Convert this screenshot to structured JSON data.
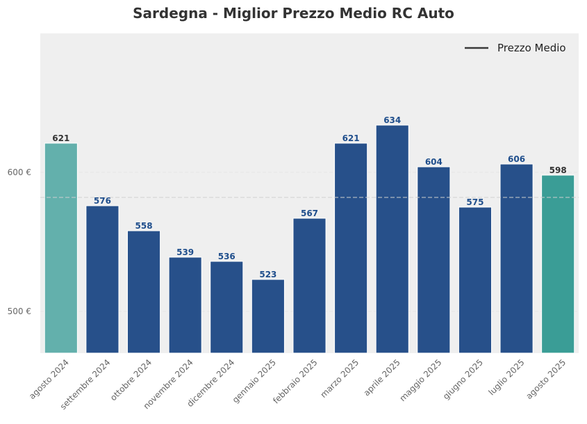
{
  "chart_data": {
    "type": "bar",
    "title": "Sardegna - Miglior Prezzo Medio RC Auto",
    "xlabel": "",
    "ylabel": "",
    "categories": [
      "agosto 2024",
      "settembre 2024",
      "ottobre 2024",
      "novembre 2024",
      "dicembre 2024",
      "gennaio 2025",
      "febbraio 2025",
      "marzo 2025",
      "aprile 2025",
      "maggio 2025",
      "giugno 2025",
      "luglio 2025",
      "agosto 2025"
    ],
    "values": [
      621,
      576,
      558,
      539,
      536,
      523,
      567,
      621,
      634,
      604,
      575,
      606,
      598
    ],
    "bar_colors": [
      "#63b0ac",
      "#27508a",
      "#27508a",
      "#27508a",
      "#27508a",
      "#27508a",
      "#27508a",
      "#27508a",
      "#27508a",
      "#27508a",
      "#27508a",
      "#27508a",
      "#3a9d96"
    ],
    "label_colors": [
      "#333333",
      "#1f4e8c",
      "#1f4e8c",
      "#1f4e8c",
      "#1f4e8c",
      "#1f4e8c",
      "#1f4e8c",
      "#1f4e8c",
      "#1f4e8c",
      "#1f4e8c",
      "#1f4e8c",
      "#1f4e8c",
      "#333333"
    ],
    "ylim": [
      470,
      700
    ],
    "yticks": [
      500,
      600
    ],
    "ytick_labels": [
      "500 €",
      "600 €"
    ],
    "average_line": 582,
    "legend": {
      "label": "Prezzo Medio",
      "position": "top-right"
    },
    "grid": true,
    "background": "#efefef"
  }
}
